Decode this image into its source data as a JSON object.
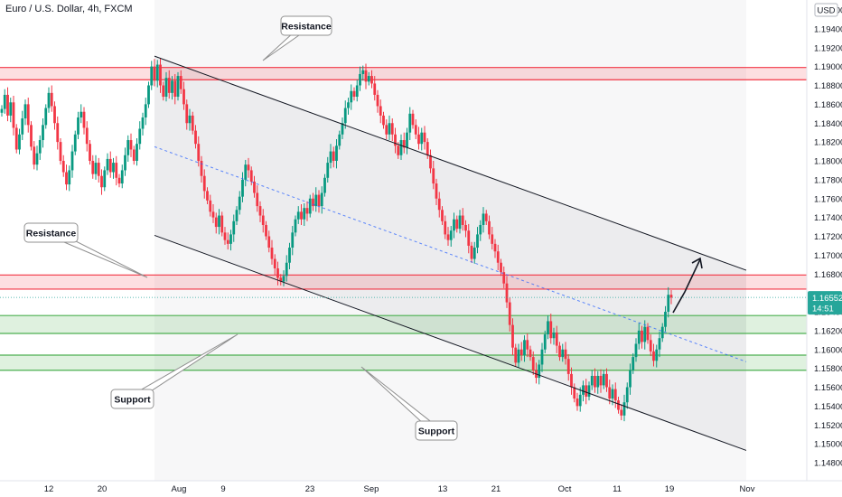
{
  "chart_data": {
    "type": "candlestick",
    "title": "Euro / U.S. Dollar, 4h, FXCM",
    "y_axis": {
      "currency_label": "USD",
      "ticks": [
        "1.19600",
        "1.19400",
        "1.19200",
        "1.19000",
        "1.18800",
        "1.18600",
        "1.18400",
        "1.18200",
        "1.18000",
        "1.17800",
        "1.17600",
        "1.17400",
        "1.17200",
        "1.17000",
        "1.16800",
        "1.16400",
        "1.16200",
        "1.16000",
        "1.15800",
        "1.15600",
        "1.15400",
        "1.15200",
        "1.15000",
        "1.14800"
      ],
      "range": [
        1.1468,
        1.1975
      ]
    },
    "x_axis": {
      "ticks": [
        "12",
        "20",
        "Aug",
        "9",
        "23",
        "Sep",
        "13",
        "21",
        "Oct",
        "11",
        "19",
        "Nov"
      ]
    },
    "price_label": {
      "price": "1.16552",
      "countdown": "14:51"
    },
    "zones": [
      {
        "kind": "resistance",
        "from": 1.1886,
        "to": 1.1899,
        "color": "#f23645"
      },
      {
        "kind": "resistance",
        "from": 1.1664,
        "to": 1.1679,
        "color": "#f23645"
      },
      {
        "kind": "support",
        "from": 1.1617,
        "to": 1.1636,
        "color": "#4caf50"
      },
      {
        "kind": "support",
        "from": 1.1578,
        "to": 1.1594,
        "color": "#4caf50"
      }
    ],
    "channel": {
      "upper_start": [
        "Jul 27",
        1.1911
      ],
      "upper_end": [
        "Nov 1",
        1.1684
      ],
      "lower_start": [
        "Jul 27",
        1.1721
      ],
      "lower_end": [
        "Nov 1",
        1.1493
      ],
      "mid_start": [
        "Jul 27",
        1.1815
      ],
      "mid_end": [
        "Nov 1",
        1.1587
      ]
    },
    "callouts": [
      {
        "text": "Resistance"
      },
      {
        "text": "Resistance"
      },
      {
        "text": "Support"
      },
      {
        "text": "Support"
      }
    ],
    "closes": [
      1.1855,
      1.187,
      1.1848,
      1.1862,
      1.1835,
      1.1812,
      1.1828,
      1.1845,
      1.186,
      1.1838,
      1.1815,
      1.1796,
      1.1808,
      1.1822,
      1.1838,
      1.1856,
      1.1872,
      1.1858,
      1.184,
      1.182,
      1.18,
      1.1788,
      1.1775,
      1.179,
      1.181,
      1.1828,
      1.1846,
      1.1852,
      1.1835,
      1.1818,
      1.18,
      1.1786,
      1.1798,
      1.1784,
      1.1772,
      1.179,
      1.1802,
      1.1788,
      1.1798,
      1.1782,
      1.1776,
      1.179,
      1.1806,
      1.1822,
      1.1812,
      1.18,
      1.1818,
      1.1834,
      1.1846,
      1.186,
      1.188,
      1.19,
      1.1885,
      1.1902,
      1.188,
      1.1868,
      1.1888,
      1.1872,
      1.1885,
      1.1868,
      1.189,
      1.1876,
      1.186,
      1.184,
      1.1848,
      1.1832,
      1.1818,
      1.18,
      1.1784,
      1.1768,
      1.1758,
      1.1746,
      1.174,
      1.173,
      1.1742,
      1.1724,
      1.1716,
      1.1712,
      1.1722,
      1.1736,
      1.1748,
      1.1762,
      1.178,
      1.1796,
      1.179,
      1.1778,
      1.1766,
      1.1752,
      1.1742,
      1.1732,
      1.172,
      1.1708,
      1.1696,
      1.1686,
      1.1676,
      1.1672,
      1.1678,
      1.1692,
      1.1708,
      1.1724,
      1.1738,
      1.1746,
      1.1738,
      1.175,
      1.1744,
      1.176,
      1.1752,
      1.1764,
      1.1752,
      1.1766,
      1.1782,
      1.1798,
      1.181,
      1.18,
      1.1816,
      1.1828,
      1.184,
      1.1856,
      1.1862,
      1.1874,
      1.1868,
      1.188,
      1.1892,
      1.1896,
      1.1884,
      1.189,
      1.1882,
      1.187,
      1.1858,
      1.1848,
      1.1838,
      1.1828,
      1.184,
      1.1828,
      1.1816,
      1.1806,
      1.1822,
      1.1814,
      1.183,
      1.185,
      1.1838,
      1.1828,
      1.1818,
      1.183,
      1.182,
      1.1806,
      1.1792,
      1.1776,
      1.176,
      1.1748,
      1.1736,
      1.1722,
      1.1716,
      1.1726,
      1.1738,
      1.1728,
      1.1742,
      1.1732,
      1.1726,
      1.171,
      1.1696,
      1.1708,
      1.1722,
      1.1732,
      1.1744,
      1.1736,
      1.1722,
      1.1712,
      1.1704,
      1.1692,
      1.1682,
      1.167,
      1.165,
      1.1626,
      1.1602,
      1.1586,
      1.16,
      1.1594,
      1.161,
      1.16,
      1.1592,
      1.1578,
      1.157,
      1.1584,
      1.16,
      1.1616,
      1.163,
      1.1612,
      1.1618,
      1.1604,
      1.1592,
      1.16,
      1.159,
      1.1574,
      1.156,
      1.1548,
      1.154,
      1.1552,
      1.1562,
      1.155,
      1.1562,
      1.1572,
      1.156,
      1.1572,
      1.1562,
      1.1574,
      1.156,
      1.1548,
      1.1558,
      1.1546,
      1.1536,
      1.153,
      1.1544,
      1.156,
      1.1578,
      1.1592,
      1.1606,
      1.162,
      1.1608,
      1.1624,
      1.161,
      1.1598,
      1.1588,
      1.16,
      1.1612,
      1.1624,
      1.164,
      1.1658,
      1.1655
    ]
  }
}
